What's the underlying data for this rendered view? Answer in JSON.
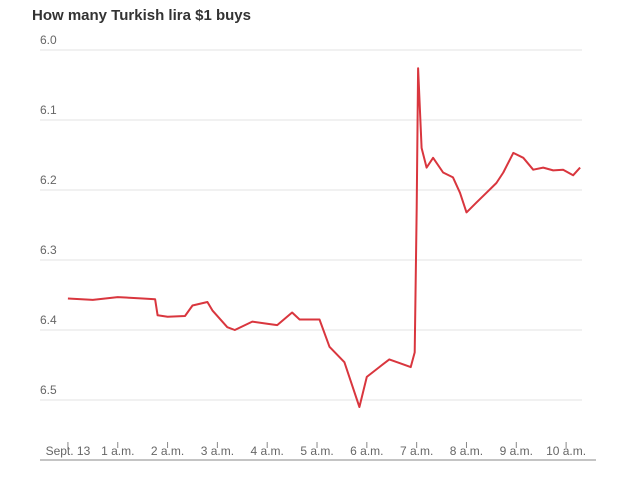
{
  "chart_data": {
    "type": "line",
    "title": "How many Turkish lira $1 buys",
    "series": [
      {
        "color": "#d9363e",
        "x": [
          0,
          0.5,
          1,
          1.5,
          1.75,
          1.8,
          2.0,
          2.35,
          2.5,
          2.8,
          2.9,
          3.2,
          3.35,
          3.7,
          4.0,
          4.2,
          4.5,
          4.65,
          5.05,
          5.25,
          5.55,
          5.85,
          6.0,
          6.25,
          6.45,
          6.65,
          6.88,
          6.96,
          7.0,
          7.03,
          7.1,
          7.2,
          7.33,
          7.53,
          7.73,
          7.87,
          8.0,
          8.2,
          8.4,
          8.6,
          8.74,
          8.94,
          9.14,
          9.34,
          9.54,
          9.74,
          9.94,
          10.14,
          10.28
        ],
        "values": [
          6.355,
          6.357,
          6.353,
          6.355,
          6.356,
          6.379,
          6.381,
          6.38,
          6.365,
          6.36,
          6.372,
          6.396,
          6.4,
          6.388,
          6.391,
          6.393,
          6.375,
          6.385,
          6.385,
          6.424,
          6.446,
          6.51,
          6.467,
          6.453,
          6.442,
          6.447,
          6.453,
          6.432,
          6.225,
          6.026,
          6.14,
          6.168,
          6.154,
          6.175,
          6.182,
          6.204,
          6.232,
          6.218,
          6.204,
          6.19,
          6.175,
          6.147,
          6.154,
          6.171,
          6.168,
          6.172,
          6.171,
          6.179,
          6.168
        ]
      }
    ],
    "xlim": [
      -0.4,
      10.6
    ],
    "xticks": [
      {
        "value": 0,
        "label": "Sept. 13"
      },
      {
        "value": 1,
        "label": "1 a.m."
      },
      {
        "value": 2,
        "label": "2 a.m."
      },
      {
        "value": 3,
        "label": "3 a.m."
      },
      {
        "value": 4,
        "label": "4 a.m."
      },
      {
        "value": 5,
        "label": "5 a.m."
      },
      {
        "value": 6,
        "label": "6 a.m."
      },
      {
        "value": 7,
        "label": "7 a.m."
      },
      {
        "value": 8,
        "label": "8 a.m."
      },
      {
        "value": 9,
        "label": "9 a.m."
      },
      {
        "value": 10,
        "label": "10 a.m."
      }
    ],
    "ylim": [
      6.0,
      6.58
    ],
    "y_inverted": true,
    "yticks": [
      {
        "value": 6,
        "label": "6.0"
      },
      6.1,
      6.2,
      6.3,
      6.4,
      6.5
    ],
    "grid": true
  }
}
